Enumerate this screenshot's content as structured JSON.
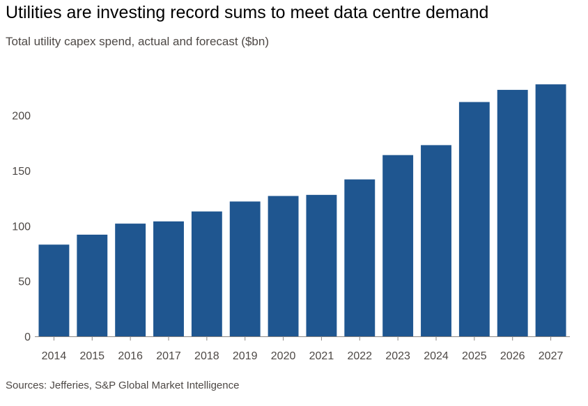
{
  "title": "Utilities are investing record sums to meet data centre demand",
  "subtitle": "Total utility capex spend, actual and forecast ($bn)",
  "source": "Sources: Jefferies, S&P Global Market Intelligence",
  "colors": {
    "bar": "#1f5690",
    "axis": "#8c8682",
    "grid": "#e6e2de"
  },
  "chart_data": {
    "type": "bar",
    "categories": [
      "2014",
      "2015",
      "2016",
      "2017",
      "2018",
      "2019",
      "2020",
      "2021",
      "2022",
      "2023",
      "2024",
      "2025",
      "2026",
      "2027"
    ],
    "values": [
      83,
      92,
      102,
      104,
      113,
      122,
      127,
      128,
      142,
      164,
      173,
      212,
      223,
      228
    ],
    "ylim": [
      0,
      235
    ],
    "yticks": [
      0,
      50,
      100,
      150,
      200
    ],
    "grid": false,
    "legend": "none"
  }
}
